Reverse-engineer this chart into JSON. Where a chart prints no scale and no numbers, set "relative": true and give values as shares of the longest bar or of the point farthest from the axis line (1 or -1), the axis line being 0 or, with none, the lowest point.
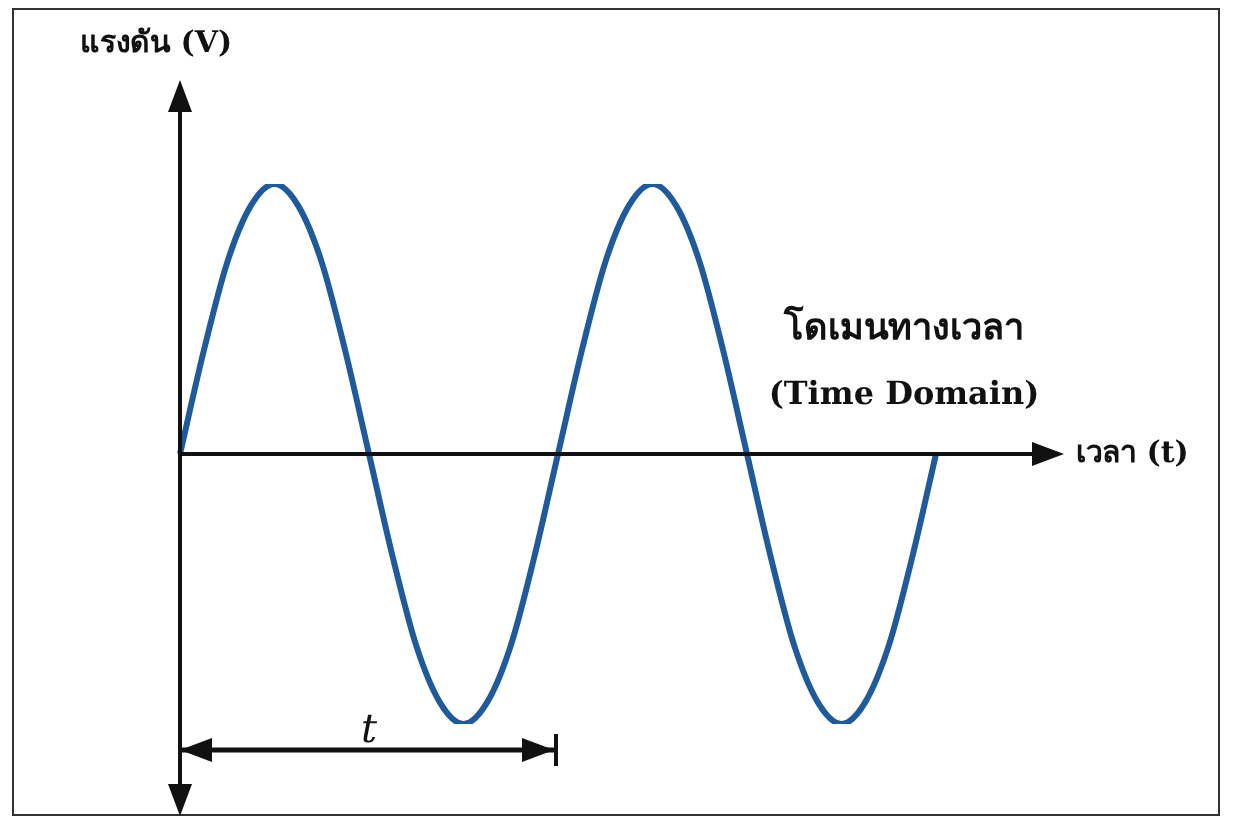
{
  "chart_data": {
    "type": "line",
    "relative": true,
    "xlabel": "เวลา (t)",
    "ylabel": "แรงดัน (V)",
    "annotations": [
      "โดเมนทางเวลา",
      "(Time Domain)",
      "t"
    ],
    "categories": [
      null,
      null,
      null,
      null,
      null,
      null,
      null,
      null,
      null,
      null,
      null,
      null,
      null,
      null,
      null,
      null,
      null,
      null,
      null,
      null,
      null,
      null,
      null,
      null,
      null,
      null,
      null,
      null,
      null,
      null,
      null,
      null,
      null
    ],
    "series": [
      {
        "color": "#1f5a9c",
        "values": [
          0,
          0.38,
          0.71,
          0.92,
          1,
          0.92,
          0.71,
          0.38,
          0,
          -0.38,
          -0.71,
          -0.92,
          -1,
          -0.92,
          -0.71,
          -0.38,
          0,
          0.38,
          0.71,
          0.92,
          1,
          0.92,
          0.71,
          0.38,
          0,
          -0.38,
          -0.71,
          -0.92,
          -1,
          -0.92,
          -0.71,
          -0.38,
          0
        ]
      }
    ]
  }
}
